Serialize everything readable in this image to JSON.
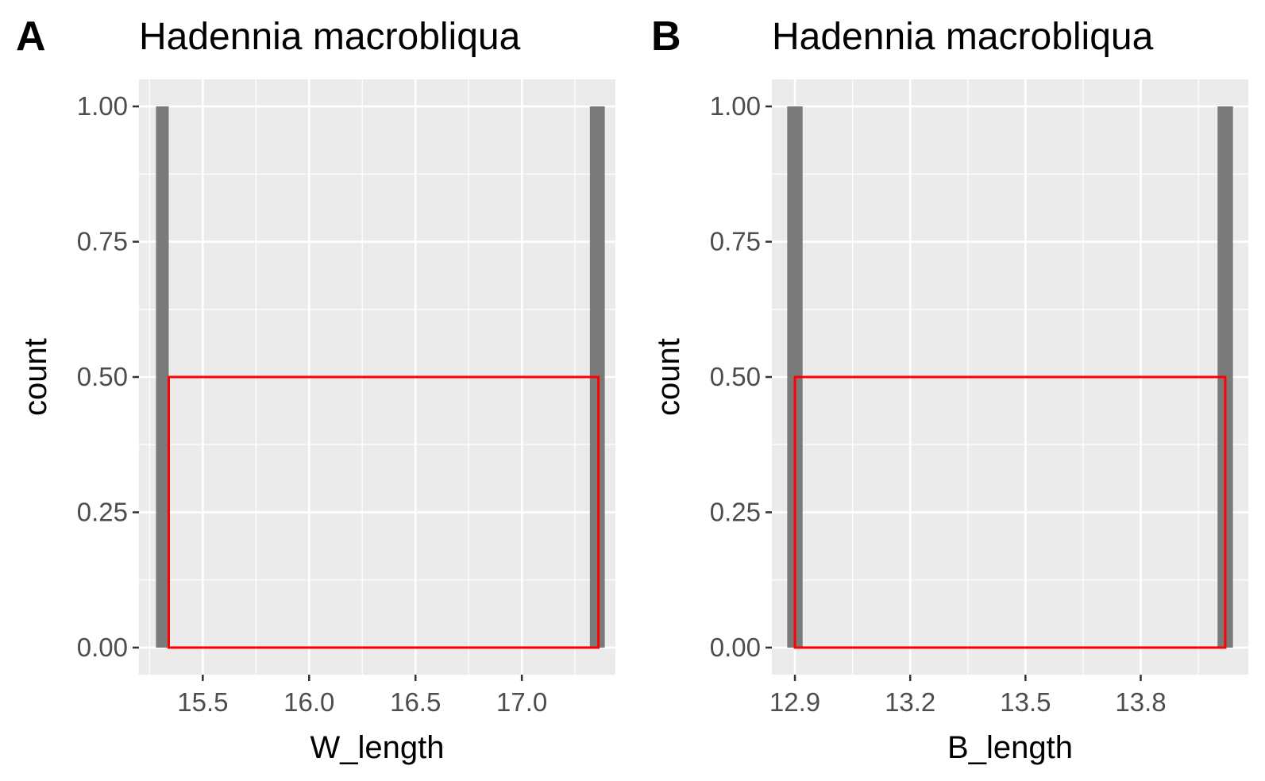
{
  "chart_data": [
    {
      "panel": "A",
      "type": "bar",
      "title": "Hadennia macrobliqua",
      "xlabel": "W_length",
      "ylabel": "count",
      "xlim": [
        15.2,
        17.44
      ],
      "ylim": [
        -0.05,
        1.05
      ],
      "xticks": [
        15.5,
        16.0,
        16.5,
        17.0
      ],
      "xtick_labels": [
        "15.5",
        "16.0",
        "16.5",
        "17.0"
      ],
      "yticks": [
        0,
        0.25,
        0.5,
        0.75,
        1.0
      ],
      "ytick_labels": [
        "0.00",
        "0.25",
        "0.50",
        "0.75",
        "1.00"
      ],
      "bars": [
        {
          "x_start": 15.28,
          "x_end": 15.34,
          "count": 1
        },
        {
          "x_start": 17.32,
          "x_end": 17.39,
          "count": 1
        }
      ],
      "highlight_box": {
        "x_start": 15.34,
        "x_end": 17.36,
        "y_start": 0,
        "y_end": 0.5,
        "color": "#ff0000"
      },
      "grid": true
    },
    {
      "panel": "B",
      "type": "bar",
      "title": "Hadennia macrobliqua",
      "xlabel": "B_length",
      "ylabel": "count",
      "xlim": [
        12.84,
        14.08
      ],
      "ylim": [
        -0.05,
        1.05
      ],
      "xticks": [
        12.9,
        13.2,
        13.5,
        13.8
      ],
      "xtick_labels": [
        "12.9",
        "13.2",
        "13.5",
        "13.8"
      ],
      "yticks": [
        0,
        0.25,
        0.5,
        0.75,
        1.0
      ],
      "ytick_labels": [
        "0.00",
        "0.25",
        "0.50",
        "0.75",
        "1.00"
      ],
      "bars": [
        {
          "x_start": 12.88,
          "x_end": 12.92,
          "count": 1
        },
        {
          "x_start": 14.0,
          "x_end": 14.04,
          "count": 1
        }
      ],
      "highlight_box": {
        "x_start": 12.9,
        "x_end": 14.02,
        "y_start": 0,
        "y_end": 0.5,
        "color": "#ff0000"
      },
      "grid": true
    }
  ]
}
